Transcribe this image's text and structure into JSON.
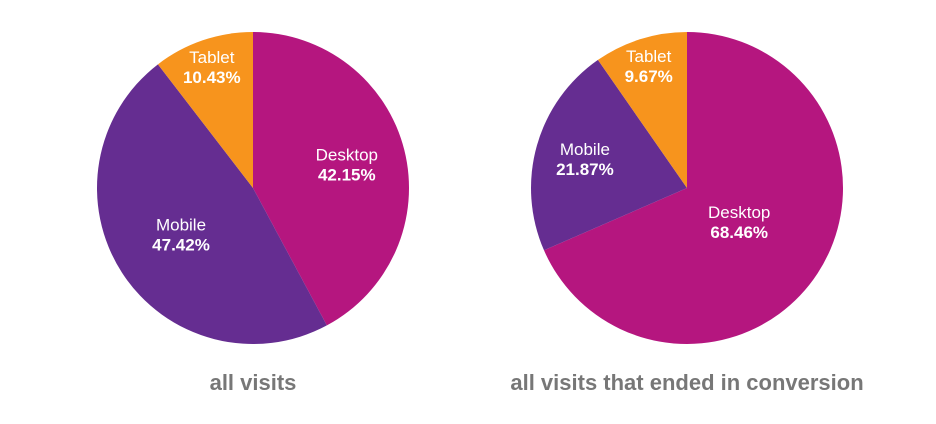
{
  "chart_data": [
    {
      "type": "pie",
      "title": "all visits",
      "slices": [
        {
          "label": "Desktop",
          "value": 42.15,
          "display": "42.15%",
          "color": "#b5167f"
        },
        {
          "label": "Mobile",
          "value": 47.42,
          "display": "47.42%",
          "color": "#652d91"
        },
        {
          "label": "Tablet",
          "value": 10.43,
          "display": "10.43%",
          "color": "#f7941d"
        }
      ]
    },
    {
      "type": "pie",
      "title": "all visits that ended in conversion",
      "slices": [
        {
          "label": "Desktop",
          "value": 68.46,
          "display": "68.46%",
          "color": "#b5167f"
        },
        {
          "label": "Mobile",
          "value": 21.87,
          "display": "21.87%",
          "color": "#652d91"
        },
        {
          "label": "Tablet",
          "value": 9.67,
          "display": "9.67%",
          "color": "#f7941d"
        }
      ]
    }
  ]
}
